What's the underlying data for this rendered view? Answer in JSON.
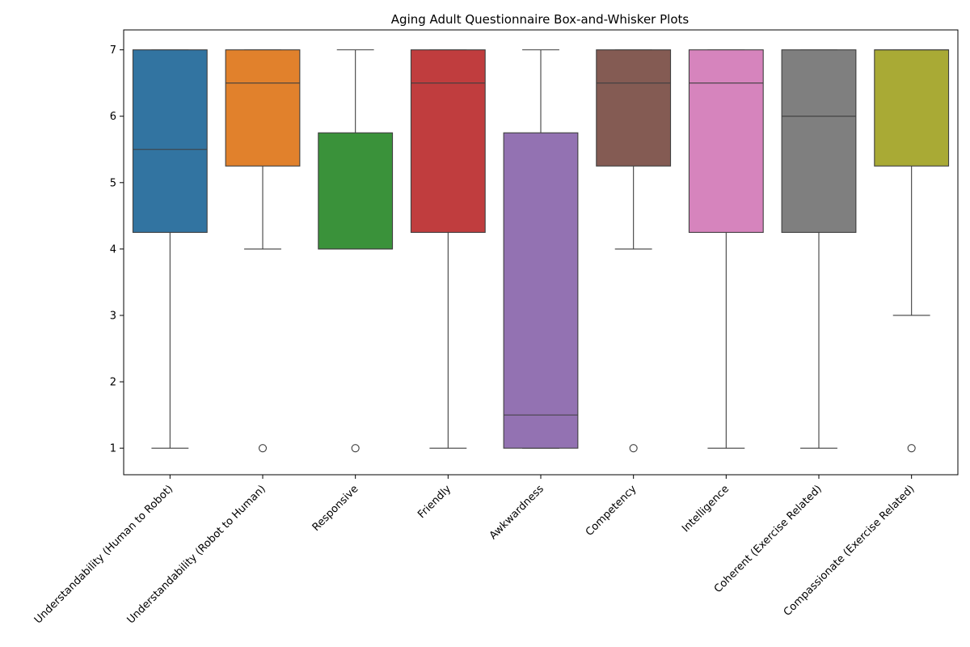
{
  "chart_data": {
    "type": "boxplot",
    "title": "Aging Adult Questionnaire Box-and-Whisker Plots",
    "xlabel": "",
    "ylabel": "",
    "ylim": [
      0.6,
      7.3
    ],
    "yticks": [
      1,
      2,
      3,
      4,
      5,
      6,
      7
    ],
    "grid": false,
    "categories": [
      "Understandability (Human to Robot)",
      "Understandability (Robot to Human)",
      "Responsive",
      "Friendly",
      "Awkwardness",
      "Competency",
      "Intelligence",
      "Coherent (Exercise Related)",
      "Compassionate (Exercise Related)"
    ],
    "boxes": [
      {
        "min": 1,
        "q1": 4.25,
        "median": 5.5,
        "q3": 7,
        "max": 7,
        "outliers": [],
        "color": "#3274a1"
      },
      {
        "min": 4,
        "q1": 5.25,
        "median": 6.5,
        "q3": 7,
        "max": 7,
        "outliers": [
          1
        ],
        "color": "#e1812c"
      },
      {
        "min": 4,
        "q1": 4,
        "median": 4,
        "q3": 5.75,
        "max": 7,
        "outliers": [
          1
        ],
        "color": "#3a923a"
      },
      {
        "min": 1,
        "q1": 4.25,
        "median": 6.5,
        "q3": 7,
        "max": 7,
        "outliers": [],
        "color": "#c03d3e"
      },
      {
        "min": 1,
        "q1": 1,
        "median": 1.5,
        "q3": 5.75,
        "max": 7,
        "outliers": [],
        "color": "#9372b2"
      },
      {
        "min": 4,
        "q1": 5.25,
        "median": 6.5,
        "q3": 7,
        "max": 7,
        "outliers": [
          1
        ],
        "color": "#845b53"
      },
      {
        "min": 1,
        "q1": 4.25,
        "median": 6.5,
        "q3": 7,
        "max": 7,
        "outliers": [],
        "color": "#d684bd"
      },
      {
        "min": 1,
        "q1": 4.25,
        "median": 6,
        "q3": 7,
        "max": 7,
        "outliers": [],
        "color": "#7f7f7f"
      },
      {
        "min": 3,
        "q1": 5.25,
        "median": 7,
        "q3": 7,
        "max": 7,
        "outliers": [
          1
        ],
        "color": "#a9aa35"
      }
    ]
  }
}
